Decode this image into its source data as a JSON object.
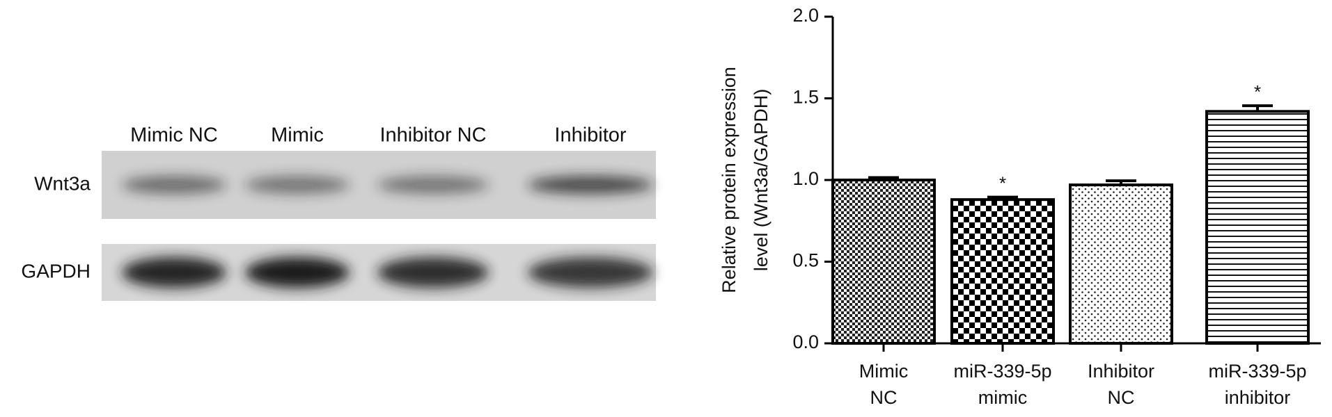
{
  "blot": {
    "lanes": [
      "Mimic NC",
      "Mimic",
      "Inhibitor NC",
      "Inhibitor"
    ],
    "rows": [
      "Wnt3a",
      "GAPDH"
    ]
  },
  "chart_data": {
    "type": "bar",
    "ylabel": [
      "Relative protein expression",
      "level (Wnt3a/GAPDH)"
    ],
    "categories": [
      [
        "Mimic",
        "NC"
      ],
      [
        "miR-339-5p",
        "mimic"
      ],
      [
        "Inhibitor",
        "NC"
      ],
      [
        "miR-339-5p",
        "inhibitor"
      ]
    ],
    "values": [
      1.0,
      0.88,
      0.97,
      1.42
    ],
    "errors": [
      0.015,
      0.015,
      0.025,
      0.035
    ],
    "significance": [
      null,
      "*",
      null,
      "*"
    ],
    "ylim": [
      0,
      2
    ],
    "yticks": [
      {
        "value": 0,
        "label": "0.0"
      },
      {
        "value": 0.5,
        "label": "0.5"
      },
      {
        "value": 1,
        "label": "1.0"
      },
      {
        "value": 1.5,
        "label": "1.5"
      },
      {
        "value": 2,
        "label": "2.0"
      }
    ]
  }
}
